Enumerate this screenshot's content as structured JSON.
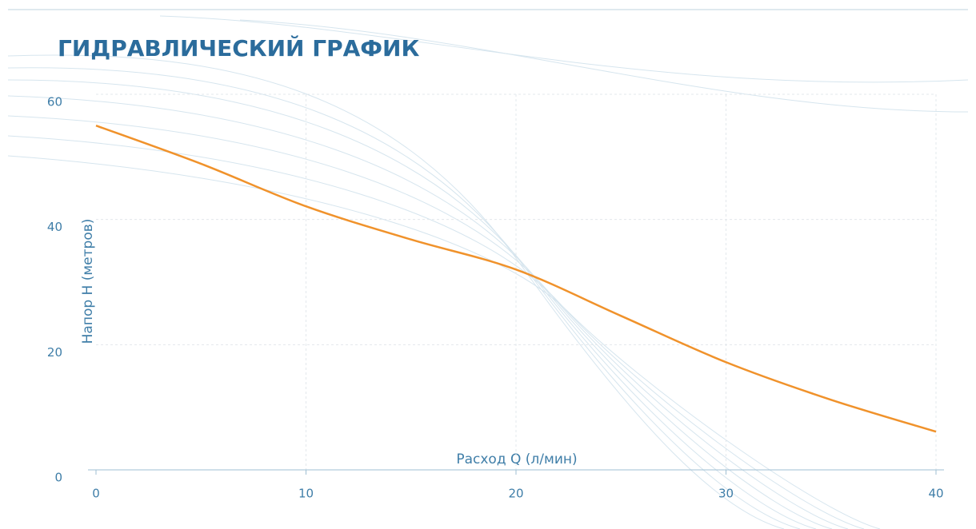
{
  "chart_data": {
    "type": "line",
    "title": "ГИДРАВЛИЧЕСКИЙ ГРАФИК",
    "x_label": "Расход Q (л/мин)",
    "y_label": "Напор Н (метров)",
    "x": [
      0,
      5,
      10,
      15,
      20,
      25,
      30,
      35,
      40
    ],
    "series": [
      {
        "name": "Напор",
        "color": "#f0922b",
        "values": [
          55,
          48.9,
          42.1,
          36.8,
          32.0,
          24.6,
          17.2,
          11.2,
          6.1
        ]
      }
    ],
    "xlim": [
      0,
      40
    ],
    "xticks": [
      0,
      10,
      20,
      30,
      40
    ],
    "ylim": [
      0,
      60
    ],
    "yticks": [
      0,
      20,
      40,
      60
    ],
    "grid": true
  }
}
